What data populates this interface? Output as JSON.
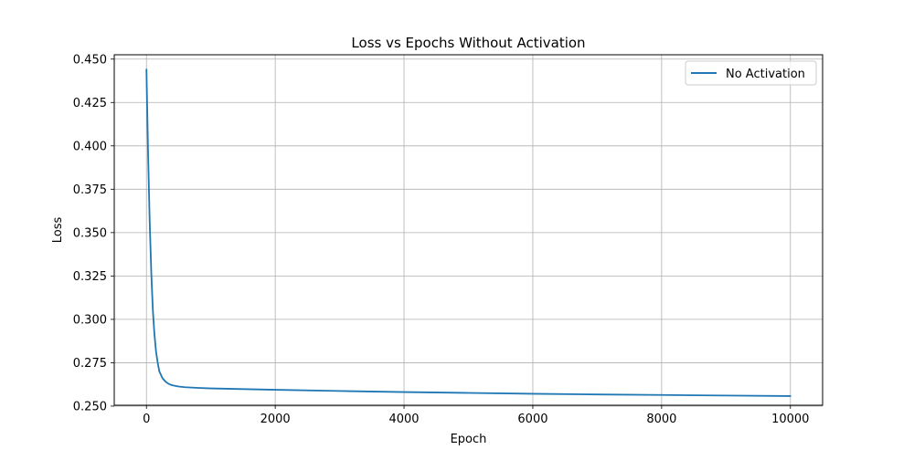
{
  "chart_data": {
    "type": "line",
    "title": "Loss vs Epochs Without Activation",
    "xlabel": "Epoch",
    "ylabel": "Loss",
    "xlim": [
      -500,
      10500
    ],
    "ylim": [
      0.2505,
      0.4525
    ],
    "xticks": [
      0,
      2000,
      4000,
      6000,
      8000,
      10000
    ],
    "xtick_labels": [
      "0",
      "2000",
      "4000",
      "6000",
      "8000",
      "10000"
    ],
    "yticks": [
      0.25,
      0.275,
      0.3,
      0.325,
      0.35,
      0.375,
      0.4,
      0.425,
      0.45
    ],
    "ytick_labels": [
      "0.250",
      "0.275",
      "0.300",
      "0.325",
      "0.350",
      "0.375",
      "0.400",
      "0.425",
      "0.450"
    ],
    "grid": true,
    "legend_position": "top-right",
    "series": [
      {
        "name": "No Activation",
        "color": "#1f77b4",
        "x": [
          0,
          25,
          50,
          75,
          100,
          125,
          150,
          175,
          200,
          250,
          300,
          350,
          400,
          500,
          600,
          800,
          1000,
          1500,
          2000,
          3000,
          4000,
          5000,
          6000,
          7000,
          8000,
          9000,
          10000
        ],
        "y": [
          0.444,
          0.396,
          0.357,
          0.327,
          0.305,
          0.291,
          0.281,
          0.275,
          0.27,
          0.266,
          0.264,
          0.2627,
          0.262,
          0.2613,
          0.2609,
          0.2605,
          0.2602,
          0.2598,
          0.2594,
          0.2587,
          0.2581,
          0.2576,
          0.2571,
          0.2567,
          0.2564,
          0.2561,
          0.2558
        ]
      }
    ]
  }
}
